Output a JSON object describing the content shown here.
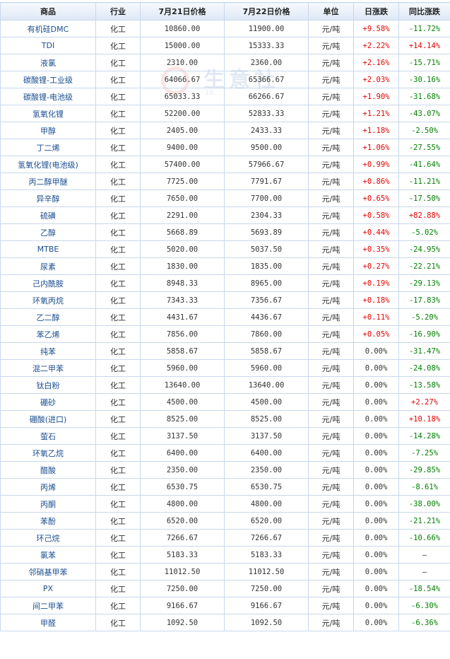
{
  "headers": [
    "商品",
    "行业",
    "7月21日价格",
    "7月22日价格",
    "单位",
    "日涨跌",
    "同比涨跌"
  ],
  "watermark": {
    "text": "生意社",
    "url": "10..."
  },
  "rows": [
    {
      "name": "有机硅DMC",
      "industry": "化工",
      "p21": "10860.00",
      "p22": "11900.00",
      "unit": "元/吨",
      "day": "+9.58%",
      "dayDir": "up",
      "yoy": "-11.72%",
      "yoyDir": "down"
    },
    {
      "name": "TDI",
      "industry": "化工",
      "p21": "15000.00",
      "p22": "15333.33",
      "unit": "元/吨",
      "day": "+2.22%",
      "dayDir": "up",
      "yoy": "+14.14%",
      "yoyDir": "up"
    },
    {
      "name": "液氯",
      "industry": "化工",
      "p21": "2310.00",
      "p22": "2360.00",
      "unit": "元/吨",
      "day": "+2.16%",
      "dayDir": "up",
      "yoy": "-15.71%",
      "yoyDir": "down"
    },
    {
      "name": "碳酸锂-工业级",
      "industry": "化工",
      "p21": "64066.67",
      "p22": "65366.67",
      "unit": "元/吨",
      "day": "+2.03%",
      "dayDir": "up",
      "yoy": "-30.16%",
      "yoyDir": "down"
    },
    {
      "name": "碳酸锂-电池级",
      "industry": "化工",
      "p21": "65033.33",
      "p22": "66266.67",
      "unit": "元/吨",
      "day": "+1.90%",
      "dayDir": "up",
      "yoy": "-31.68%",
      "yoyDir": "down"
    },
    {
      "name": "氢氧化锂",
      "industry": "化工",
      "p21": "52200.00",
      "p22": "52833.33",
      "unit": "元/吨",
      "day": "+1.21%",
      "dayDir": "up",
      "yoy": "-43.07%",
      "yoyDir": "down"
    },
    {
      "name": "甲醇",
      "industry": "化工",
      "p21": "2405.00",
      "p22": "2433.33",
      "unit": "元/吨",
      "day": "+1.18%",
      "dayDir": "up",
      "yoy": "-2.50%",
      "yoyDir": "down"
    },
    {
      "name": "丁二烯",
      "industry": "化工",
      "p21": "9400.00",
      "p22": "9500.00",
      "unit": "元/吨",
      "day": "+1.06%",
      "dayDir": "up",
      "yoy": "-27.55%",
      "yoyDir": "down"
    },
    {
      "name": "氢氧化锂(电池级)",
      "industry": "化工",
      "p21": "57400.00",
      "p22": "57966.67",
      "unit": "元/吨",
      "day": "+0.99%",
      "dayDir": "up",
      "yoy": "-41.64%",
      "yoyDir": "down"
    },
    {
      "name": "丙二醇甲醚",
      "industry": "化工",
      "p21": "7725.00",
      "p22": "7791.67",
      "unit": "元/吨",
      "day": "+0.86%",
      "dayDir": "up",
      "yoy": "-11.21%",
      "yoyDir": "down"
    },
    {
      "name": "异辛醇",
      "industry": "化工",
      "p21": "7650.00",
      "p22": "7700.00",
      "unit": "元/吨",
      "day": "+0.65%",
      "dayDir": "up",
      "yoy": "-17.50%",
      "yoyDir": "down"
    },
    {
      "name": "硫磺",
      "industry": "化工",
      "p21": "2291.00",
      "p22": "2304.33",
      "unit": "元/吨",
      "day": "+0.58%",
      "dayDir": "up",
      "yoy": "+82.88%",
      "yoyDir": "up"
    },
    {
      "name": "乙醇",
      "industry": "化工",
      "p21": "5668.89",
      "p22": "5693.89",
      "unit": "元/吨",
      "day": "+0.44%",
      "dayDir": "up",
      "yoy": "-5.02%",
      "yoyDir": "down"
    },
    {
      "name": "MTBE",
      "industry": "化工",
      "p21": "5020.00",
      "p22": "5037.50",
      "unit": "元/吨",
      "day": "+0.35%",
      "dayDir": "up",
      "yoy": "-24.95%",
      "yoyDir": "down"
    },
    {
      "name": "尿素",
      "industry": "化工",
      "p21": "1830.00",
      "p22": "1835.00",
      "unit": "元/吨",
      "day": "+0.27%",
      "dayDir": "up",
      "yoy": "-22.21%",
      "yoyDir": "down"
    },
    {
      "name": "己内酰胺",
      "industry": "化工",
      "p21": "8948.33",
      "p22": "8965.00",
      "unit": "元/吨",
      "day": "+0.19%",
      "dayDir": "up",
      "yoy": "-29.13%",
      "yoyDir": "down"
    },
    {
      "name": "环氧丙烷",
      "industry": "化工",
      "p21": "7343.33",
      "p22": "7356.67",
      "unit": "元/吨",
      "day": "+0.18%",
      "dayDir": "up",
      "yoy": "-17.83%",
      "yoyDir": "down"
    },
    {
      "name": "乙二醇",
      "industry": "化工",
      "p21": "4431.67",
      "p22": "4436.67",
      "unit": "元/吨",
      "day": "+0.11%",
      "dayDir": "up",
      "yoy": "-5.20%",
      "yoyDir": "down"
    },
    {
      "name": "苯乙烯",
      "industry": "化工",
      "p21": "7856.00",
      "p22": "7860.00",
      "unit": "元/吨",
      "day": "+0.05%",
      "dayDir": "up",
      "yoy": "-16.90%",
      "yoyDir": "down"
    },
    {
      "name": "纯苯",
      "industry": "化工",
      "p21": "5858.67",
      "p22": "5858.67",
      "unit": "元/吨",
      "day": "0.00%",
      "dayDir": "flat",
      "yoy": "-31.47%",
      "yoyDir": "down"
    },
    {
      "name": "混二甲苯",
      "industry": "化工",
      "p21": "5960.00",
      "p22": "5960.00",
      "unit": "元/吨",
      "day": "0.00%",
      "dayDir": "flat",
      "yoy": "-24.08%",
      "yoyDir": "down"
    },
    {
      "name": "钛白粉",
      "industry": "化工",
      "p21": "13640.00",
      "p22": "13640.00",
      "unit": "元/吨",
      "day": "0.00%",
      "dayDir": "flat",
      "yoy": "-13.58%",
      "yoyDir": "down"
    },
    {
      "name": "硼砂",
      "industry": "化工",
      "p21": "4500.00",
      "p22": "4500.00",
      "unit": "元/吨",
      "day": "0.00%",
      "dayDir": "flat",
      "yoy": "+2.27%",
      "yoyDir": "up"
    },
    {
      "name": "硼酸(进口)",
      "industry": "化工",
      "p21": "8525.00",
      "p22": "8525.00",
      "unit": "元/吨",
      "day": "0.00%",
      "dayDir": "flat",
      "yoy": "+10.18%",
      "yoyDir": "up"
    },
    {
      "name": "萤石",
      "industry": "化工",
      "p21": "3137.50",
      "p22": "3137.50",
      "unit": "元/吨",
      "day": "0.00%",
      "dayDir": "flat",
      "yoy": "-14.28%",
      "yoyDir": "down"
    },
    {
      "name": "环氧乙烷",
      "industry": "化工",
      "p21": "6400.00",
      "p22": "6400.00",
      "unit": "元/吨",
      "day": "0.00%",
      "dayDir": "flat",
      "yoy": "-7.25%",
      "yoyDir": "down"
    },
    {
      "name": "醋酸",
      "industry": "化工",
      "p21": "2350.00",
      "p22": "2350.00",
      "unit": "元/吨",
      "day": "0.00%",
      "dayDir": "flat",
      "yoy": "-29.85%",
      "yoyDir": "down"
    },
    {
      "name": "丙烯",
      "industry": "化工",
      "p21": "6530.75",
      "p22": "6530.75",
      "unit": "元/吨",
      "day": "0.00%",
      "dayDir": "flat",
      "yoy": "-8.61%",
      "yoyDir": "down"
    },
    {
      "name": "丙酮",
      "industry": "化工",
      "p21": "4800.00",
      "p22": "4800.00",
      "unit": "元/吨",
      "day": "0.00%",
      "dayDir": "flat",
      "yoy": "-38.00%",
      "yoyDir": "down"
    },
    {
      "name": "苯酚",
      "industry": "化工",
      "p21": "6520.00",
      "p22": "6520.00",
      "unit": "元/吨",
      "day": "0.00%",
      "dayDir": "flat",
      "yoy": "-21.21%",
      "yoyDir": "down"
    },
    {
      "name": "环己烷",
      "industry": "化工",
      "p21": "7266.67",
      "p22": "7266.67",
      "unit": "元/吨",
      "day": "0.00%",
      "dayDir": "flat",
      "yoy": "-10.66%",
      "yoyDir": "down"
    },
    {
      "name": "氯苯",
      "industry": "化工",
      "p21": "5183.33",
      "p22": "5183.33",
      "unit": "元/吨",
      "day": "0.00%",
      "dayDir": "flat",
      "yoy": "—",
      "yoyDir": "flat"
    },
    {
      "name": "邻硝基甲苯",
      "industry": "化工",
      "p21": "11012.50",
      "p22": "11012.50",
      "unit": "元/吨",
      "day": "0.00%",
      "dayDir": "flat",
      "yoy": "—",
      "yoyDir": "flat"
    },
    {
      "name": "PX",
      "industry": "化工",
      "p21": "7250.00",
      "p22": "7250.00",
      "unit": "元/吨",
      "day": "0.00%",
      "dayDir": "flat",
      "yoy": "-18.54%",
      "yoyDir": "down"
    },
    {
      "name": "间二甲苯",
      "industry": "化工",
      "p21": "9166.67",
      "p22": "9166.67",
      "unit": "元/吨",
      "day": "0.00%",
      "dayDir": "flat",
      "yoy": "-6.30%",
      "yoyDir": "down"
    },
    {
      "name": "甲醛",
      "industry": "化工",
      "p21": "1092.50",
      "p22": "1092.50",
      "unit": "元/吨",
      "day": "0.00%",
      "dayDir": "flat",
      "yoy": "-6.36%",
      "yoyDir": "down"
    }
  ]
}
